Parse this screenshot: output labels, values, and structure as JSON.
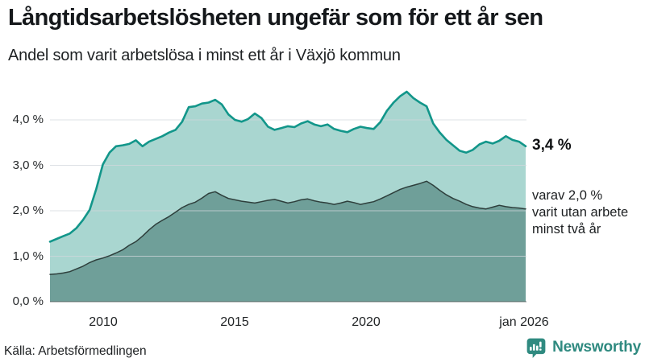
{
  "chart_data": {
    "type": "area",
    "title": "Långtidsarbetslösheten ungefär som för ett år sen",
    "subtitle": "Andel som varit arbetslösa i minst ett år i Växjö kommun",
    "x_start": 2008,
    "x_step": 0.25,
    "xlim": [
      2008,
      2026
    ],
    "ylim": [
      0,
      4.81
    ],
    "grid": true,
    "legend_position": "none",
    "yticks": [
      {
        "v": 4,
        "label": "4,0 %"
      },
      {
        "v": 3,
        "label": "3,0 %"
      },
      {
        "v": 2,
        "label": "2,0 %"
      },
      {
        "v": 1,
        "label": "1,0 %"
      },
      {
        "v": 0,
        "label": "0,0 %"
      }
    ],
    "xticks": [
      {
        "x": 2010,
        "label": "2010"
      },
      {
        "x": 2015,
        "label": "2015"
      },
      {
        "x": 2020,
        "label": "2020"
      },
      {
        "x": 2026,
        "label": "jan 2026"
      }
    ],
    "series": [
      {
        "name": "Arbetslösa minst ett år",
        "line_color": "#12968a",
        "fill_color": "#a9d6d0",
        "values": [
          1.32,
          1.38,
          1.44,
          1.5,
          1.62,
          1.8,
          2.02,
          2.48,
          3.02,
          3.28,
          3.42,
          3.44,
          3.47,
          3.55,
          3.42,
          3.52,
          3.58,
          3.64,
          3.72,
          3.78,
          3.96,
          4.28,
          4.3,
          4.36,
          4.38,
          4.44,
          4.34,
          4.12,
          4.0,
          3.96,
          4.02,
          4.14,
          4.04,
          3.85,
          3.78,
          3.82,
          3.86,
          3.84,
          3.92,
          3.97,
          3.9,
          3.86,
          3.9,
          3.8,
          3.76,
          3.73,
          3.8,
          3.85,
          3.82,
          3.8,
          3.95,
          4.2,
          4.38,
          4.52,
          4.62,
          4.48,
          4.38,
          4.3,
          3.92,
          3.72,
          3.56,
          3.44,
          3.32,
          3.28,
          3.34,
          3.46,
          3.52,
          3.48,
          3.54,
          3.64,
          3.56,
          3.52,
          3.42
        ]
      },
      {
        "name": "Varav utan arbete minst två år",
        "line_color": "#2e3f3c",
        "fill_color": "#6f9f99",
        "values": [
          0.6,
          0.61,
          0.63,
          0.66,
          0.72,
          0.78,
          0.86,
          0.92,
          0.96,
          1.01,
          1.07,
          1.14,
          1.24,
          1.32,
          1.44,
          1.58,
          1.7,
          1.79,
          1.87,
          1.97,
          2.07,
          2.14,
          2.19,
          2.28,
          2.38,
          2.42,
          2.34,
          2.27,
          2.24,
          2.21,
          2.19,
          2.17,
          2.2,
          2.23,
          2.25,
          2.21,
          2.17,
          2.2,
          2.24,
          2.26,
          2.22,
          2.19,
          2.17,
          2.14,
          2.17,
          2.21,
          2.18,
          2.14,
          2.17,
          2.2,
          2.26,
          2.33,
          2.4,
          2.47,
          2.52,
          2.56,
          2.6,
          2.65,
          2.56,
          2.45,
          2.35,
          2.27,
          2.21,
          2.14,
          2.09,
          2.06,
          2.04,
          2.08,
          2.12,
          2.09,
          2.07,
          2.06,
          2.04
        ]
      }
    ],
    "annotations": {
      "latest_total": "3,4 %",
      "latest_two_year": "varav 2,0 %\nvarit utan arbete\nminst två år"
    }
  },
  "footer": {
    "source": "Källa: Arbetsförmedlingen",
    "brand": "Newsworthy"
  }
}
